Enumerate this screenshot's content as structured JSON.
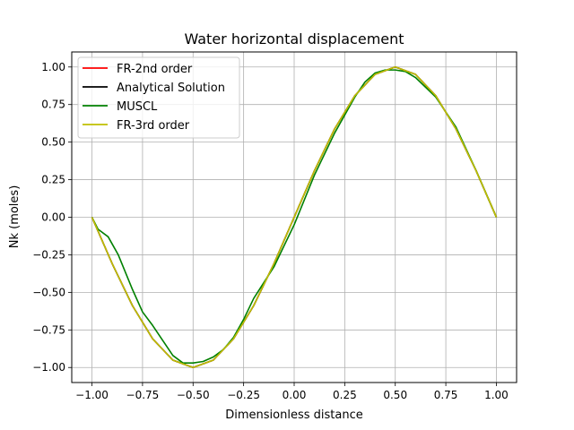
{
  "chart_data": {
    "type": "line",
    "title": "Water horizontal displacement",
    "xlabel": "Dimensionless distance",
    "ylabel": "Nk (moles)",
    "xlim": [
      -1.1,
      1.1
    ],
    "ylim": [
      -1.1,
      1.1
    ],
    "xticks": [
      -1.0,
      -0.75,
      -0.5,
      -0.25,
      0.0,
      0.25,
      0.5,
      0.75,
      1.0
    ],
    "xtick_labels": [
      "−1.00",
      "−0.75",
      "−0.50",
      "−0.25",
      "0.00",
      "0.25",
      "0.50",
      "0.75",
      "1.00"
    ],
    "yticks": [
      -1.0,
      -0.75,
      -0.5,
      -0.25,
      0.0,
      0.25,
      0.5,
      0.75,
      1.0
    ],
    "ytick_labels": [
      "−1.00",
      "−0.75",
      "−0.50",
      "−0.25",
      "0.00",
      "0.25",
      "0.50",
      "0.75",
      "1.00"
    ],
    "grid": true,
    "legend_position": "top-left",
    "series": [
      {
        "name": "FR-2nd order",
        "color": "#ff0000",
        "x": [
          -1.0,
          -0.9,
          -0.8,
          -0.7,
          -0.6,
          -0.5,
          -0.4,
          -0.3,
          -0.2,
          -0.1,
          0.0,
          0.1,
          0.2,
          0.3,
          0.4,
          0.5,
          0.6,
          0.7,
          0.8,
          0.9,
          1.0
        ],
        "y": [
          0.0,
          -0.309,
          -0.588,
          -0.809,
          -0.951,
          -1.0,
          -0.951,
          -0.809,
          -0.588,
          -0.309,
          0.0,
          0.309,
          0.588,
          0.809,
          0.951,
          1.0,
          0.951,
          0.809,
          0.588,
          0.309,
          0.0
        ]
      },
      {
        "name": "Analytical Solution",
        "color": "#000000",
        "x": [
          -1.0,
          -0.9,
          -0.8,
          -0.7,
          -0.6,
          -0.5,
          -0.4,
          -0.3,
          -0.2,
          -0.1,
          0.0,
          0.1,
          0.2,
          0.3,
          0.4,
          0.5,
          0.6,
          0.7,
          0.8,
          0.9,
          1.0
        ],
        "y": [
          0.0,
          -0.309,
          -0.588,
          -0.809,
          -0.951,
          -1.0,
          -0.951,
          -0.809,
          -0.588,
          -0.309,
          0.0,
          0.309,
          0.588,
          0.809,
          0.951,
          1.0,
          0.951,
          0.809,
          0.588,
          0.309,
          0.0
        ]
      },
      {
        "name": "MUSCL",
        "color": "#008000",
        "x": [
          -1.0,
          -0.97,
          -0.92,
          -0.87,
          -0.8,
          -0.75,
          -0.7,
          -0.65,
          -0.6,
          -0.55,
          -0.5,
          -0.45,
          -0.4,
          -0.35,
          -0.3,
          -0.25,
          -0.2,
          -0.1,
          0.0,
          0.1,
          0.2,
          0.3,
          0.35,
          0.4,
          0.45,
          0.5,
          0.55,
          0.6,
          0.7,
          0.8,
          0.9,
          1.0
        ],
        "y": [
          0.0,
          -0.08,
          -0.13,
          -0.25,
          -0.48,
          -0.63,
          -0.72,
          -0.82,
          -0.92,
          -0.97,
          -0.97,
          -0.96,
          -0.93,
          -0.88,
          -0.8,
          -0.68,
          -0.54,
          -0.33,
          -0.05,
          0.28,
          0.56,
          0.8,
          0.9,
          0.96,
          0.98,
          0.98,
          0.97,
          0.93,
          0.8,
          0.6,
          0.31,
          0.0
        ]
      },
      {
        "name": "FR-3rd order",
        "color": "#bfbf00",
        "x": [
          -1.0,
          -0.9,
          -0.8,
          -0.7,
          -0.6,
          -0.5,
          -0.4,
          -0.3,
          -0.2,
          -0.1,
          0.0,
          0.1,
          0.2,
          0.3,
          0.4,
          0.5,
          0.6,
          0.7,
          0.8,
          0.9,
          1.0
        ],
        "y": [
          0.0,
          -0.309,
          -0.588,
          -0.809,
          -0.951,
          -1.0,
          -0.951,
          -0.809,
          -0.588,
          -0.309,
          0.0,
          0.309,
          0.588,
          0.809,
          0.951,
          1.0,
          0.951,
          0.809,
          0.588,
          0.309,
          0.0
        ]
      }
    ]
  }
}
